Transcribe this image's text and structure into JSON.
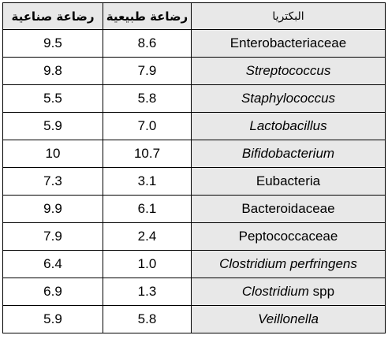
{
  "table": {
    "headers": {
      "formula": "رضاعة صناعية",
      "breast": "رضاعة طبيعية",
      "bacteria": "البكتريا"
    },
    "rows": [
      {
        "formula": "9.5",
        "breast": "8.6",
        "name": "Enterobacteriaceae",
        "name_suffix": "",
        "italic": false
      },
      {
        "formula": "9.8",
        "breast": "7.9",
        "name": "Streptococcus",
        "name_suffix": "",
        "italic": true
      },
      {
        "formula": "5.5",
        "breast": "5.8",
        "name": "Staphylococcus",
        "name_suffix": "",
        "italic": true
      },
      {
        "formula": "5.9",
        "breast": "7.0",
        "name": "Lactobacillus",
        "name_suffix": "",
        "italic": true
      },
      {
        "formula": "10",
        "breast": "10.7",
        "name": "Bifidobacterium",
        "name_suffix": "",
        "italic": true
      },
      {
        "formula": "7.3",
        "breast": "3.1",
        "name": "Eubacteria",
        "name_suffix": "",
        "italic": false
      },
      {
        "formula": "9.9",
        "breast": "6.1",
        "name": "Bacteroidaceae",
        "name_suffix": "",
        "italic": false
      },
      {
        "formula": "7.9",
        "breast": "2.4",
        "name": "Peptococcaceae",
        "name_suffix": "",
        "italic": false
      },
      {
        "formula": "6.4",
        "breast": "1.0",
        "name": "Clostridium perfringens",
        "name_suffix": "",
        "italic": true
      },
      {
        "formula": "6.9",
        "breast": "1.3",
        "name": "Clostridium",
        "name_suffix": " spp",
        "italic": true
      },
      {
        "formula": "5.9",
        "breast": "5.8",
        "name": "Veillonella",
        "name_suffix": "",
        "italic": true
      }
    ]
  }
}
